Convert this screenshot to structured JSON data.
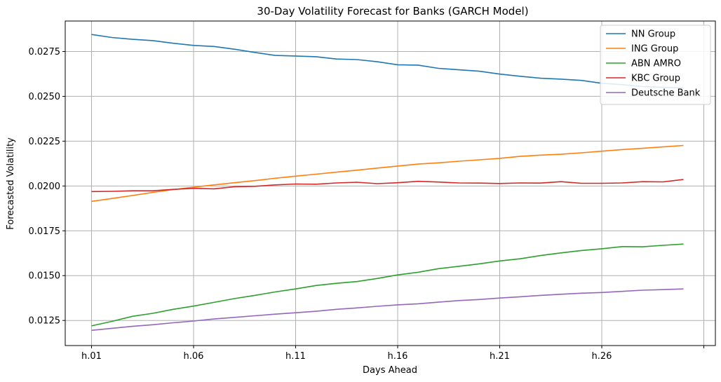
{
  "chart_data": {
    "type": "line",
    "title": "30-Day Volatility Forecast for Banks (GARCH Model)",
    "xlabel": "Days Ahead",
    "ylabel": "Forecasted Volatility",
    "x": [
      "h.01",
      "h.02",
      "h.03",
      "h.04",
      "h.05",
      "h.06",
      "h.07",
      "h.08",
      "h.09",
      "h.10",
      "h.11",
      "h.12",
      "h.13",
      "h.14",
      "h.15",
      "h.16",
      "h.17",
      "h.18",
      "h.19",
      "h.20",
      "h.21",
      "h.22",
      "h.23",
      "h.24",
      "h.25",
      "h.26",
      "h.27",
      "h.28",
      "h.29",
      "h.30"
    ],
    "xticks": [
      "h.01",
      "h.06",
      "h.11",
      "h.16",
      "h.21",
      "h.26"
    ],
    "yticks": [
      "0.0125",
      "0.0150",
      "0.0175",
      "0.0200",
      "0.0225",
      "0.0250",
      "0.0275"
    ],
    "ylim": [
      0.0111,
      0.0292
    ],
    "grid": true,
    "legend_position": "top-right",
    "series": [
      {
        "name": "NN Group",
        "color": "#1f77b4",
        "values": [
          0.02845,
          0.02828,
          0.02818,
          0.02811,
          0.02796,
          0.02784,
          0.02778,
          0.02763,
          0.02745,
          0.02728,
          0.02725,
          0.02721,
          0.02708,
          0.02705,
          0.02693,
          0.02676,
          0.02674,
          0.02656,
          0.02648,
          0.0264,
          0.02624,
          0.02612,
          0.02601,
          0.02596,
          0.02589,
          0.02573,
          0.02565,
          0.02555,
          0.0255,
          0.02547
        ]
      },
      {
        "name": "ING Group",
        "color": "#ff7f0e",
        "values": [
          0.01914,
          0.0193,
          0.01947,
          0.01964,
          0.0198,
          0.01993,
          0.02006,
          0.02018,
          0.0203,
          0.02043,
          0.02055,
          0.02066,
          0.02077,
          0.02088,
          0.021,
          0.02111,
          0.02122,
          0.02129,
          0.02138,
          0.02146,
          0.02154,
          0.02165,
          0.02172,
          0.02177,
          0.02185,
          0.02194,
          0.02203,
          0.0221,
          0.02218,
          0.02226
        ]
      },
      {
        "name": "ABN AMRO",
        "color": "#2ca02c",
        "values": [
          0.0122,
          0.01245,
          0.01273,
          0.0129,
          0.01312,
          0.0133,
          0.01351,
          0.01372,
          0.0139,
          0.01409,
          0.01426,
          0.01445,
          0.01457,
          0.01467,
          0.01484,
          0.01504,
          0.01519,
          0.01539,
          0.01552,
          0.01566,
          0.01582,
          0.01594,
          0.01612,
          0.01627,
          0.0164,
          0.0165,
          0.01662,
          0.01661,
          0.01669,
          0.01676
        ]
      },
      {
        "name": "KBC Group",
        "color": "#d62728",
        "values": [
          0.01969,
          0.0197,
          0.01973,
          0.01973,
          0.01981,
          0.01987,
          0.01984,
          0.01996,
          0.01998,
          0.02006,
          0.02011,
          0.0201,
          0.02017,
          0.02021,
          0.02013,
          0.02018,
          0.02026,
          0.02022,
          0.02017,
          0.02016,
          0.02014,
          0.02017,
          0.02016,
          0.02024,
          0.02015,
          0.02015,
          0.02017,
          0.02024,
          0.02023,
          0.02036
        ]
      },
      {
        "name": "Deutsche Bank",
        "color": "#9467bd",
        "values": [
          0.01195,
          0.01206,
          0.01217,
          0.01226,
          0.01237,
          0.01247,
          0.01258,
          0.01267,
          0.01276,
          0.01285,
          0.01293,
          0.01301,
          0.01312,
          0.0132,
          0.01329,
          0.01337,
          0.01343,
          0.01352,
          0.01361,
          0.01367,
          0.01375,
          0.01382,
          0.0139,
          0.01396,
          0.01402,
          0.01406,
          0.01412,
          0.01419,
          0.01422,
          0.01426
        ]
      }
    ]
  }
}
